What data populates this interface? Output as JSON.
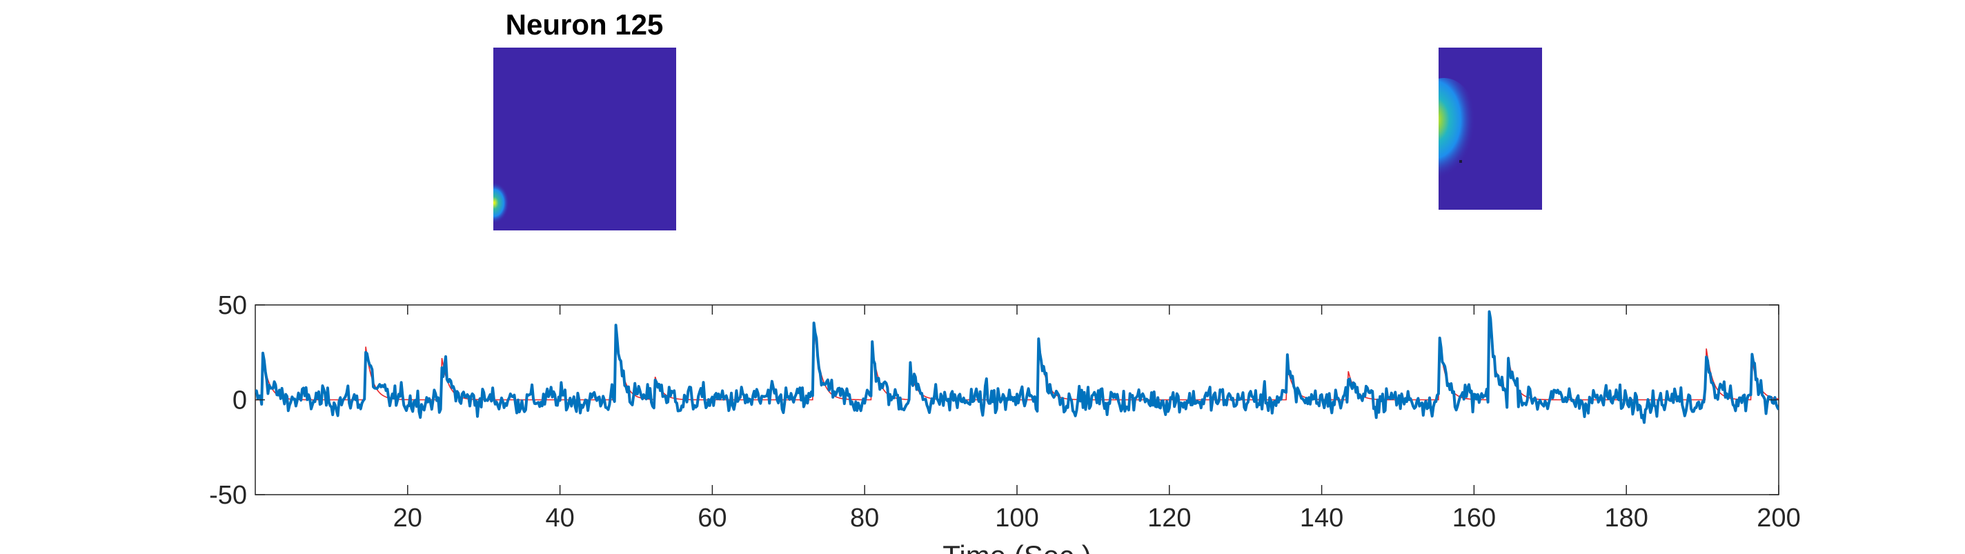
{
  "title": "Neuron 125",
  "colors": {
    "trace": "#0072BD",
    "fit": "#E8272B",
    "axes": "#262626",
    "image_background": "#3E26A8",
    "image_hot": "#F9FB0E"
  },
  "chart_data": [
    {
      "type": "heatmap",
      "description_panel": "left-spatial-footprint",
      "colormap": "parula",
      "hotspot": "bottom-left edge"
    },
    {
      "type": "heatmap",
      "description_panel": "right-spatial-footprint",
      "colormap": "parula",
      "hotspot": "left edge, upper-middle"
    },
    {
      "type": "line",
      "xlabel": "Time (Sec.)",
      "ylabel": "",
      "xlim": [
        0,
        200
      ],
      "ylim": [
        -50,
        50
      ],
      "xticks": [
        20,
        40,
        60,
        80,
        100,
        120,
        140,
        160,
        180,
        200
      ],
      "yticks": [
        -50,
        0,
        50
      ],
      "grid": false,
      "transients": [
        {
          "t": 1.0,
          "amp": 22
        },
        {
          "t": 14.5,
          "amp": 28
        },
        {
          "t": 24.5,
          "amp": 22
        },
        {
          "t": 47.3,
          "amp": 39
        },
        {
          "t": 52.5,
          "amp": 12
        },
        {
          "t": 73.3,
          "amp": 41
        },
        {
          "t": 81.0,
          "amp": 28
        },
        {
          "t": 86.0,
          "amp": 15
        },
        {
          "t": 102.7,
          "amp": 38
        },
        {
          "t": 135.5,
          "amp": 17
        },
        {
          "t": 143.5,
          "amp": 15
        },
        {
          "t": 155.5,
          "amp": 30
        },
        {
          "t": 162.0,
          "amp": 42
        },
        {
          "t": 164.5,
          "amp": 20
        },
        {
          "t": 190.5,
          "amp": 27
        },
        {
          "t": 196.5,
          "amp": 21
        }
      ],
      "noise_sd": 4.5,
      "min_value": -20,
      "n_samples": 1200
    }
  ]
}
